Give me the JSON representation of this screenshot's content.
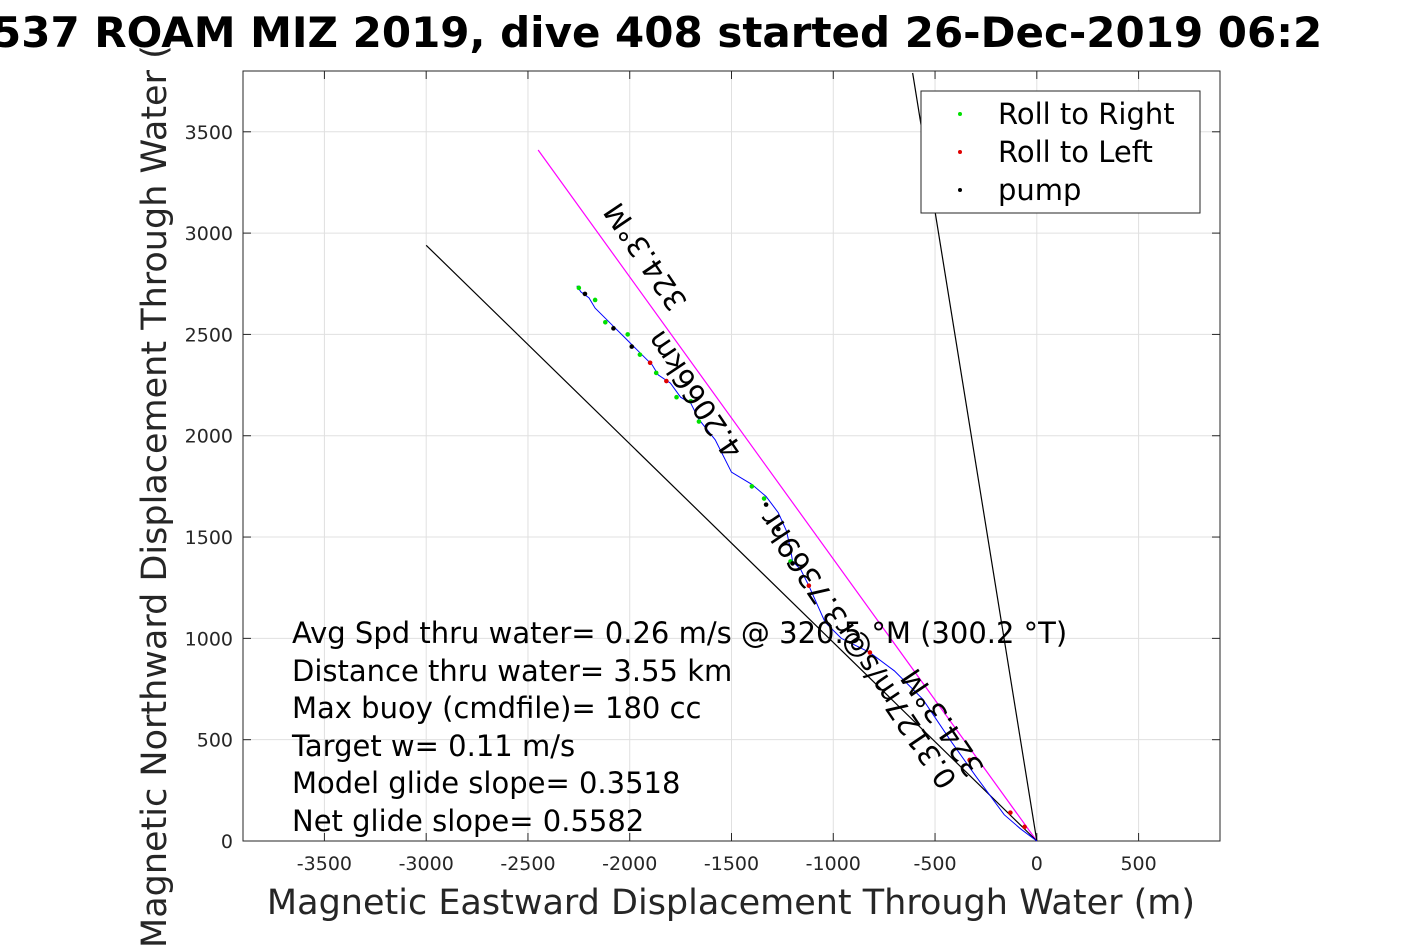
{
  "chart_data": {
    "type": "scatter",
    "title": "537 ROAM MIZ 2019, dive 408 started 26-Dec-2019 06:2",
    "xlabel": "Magnetic Eastward Displacement Through Water (m)",
    "ylabel": "Magnetic Northward Displacement Through Water (",
    "xlim": [
      -3900,
      900
    ],
    "ylim": [
      0,
      3800
    ],
    "xticks": [
      -3500,
      -3000,
      -2500,
      -2000,
      -1500,
      -1000,
      -500,
      0,
      500
    ],
    "yticks": [
      0,
      500,
      1000,
      1500,
      2000,
      2500,
      3000,
      3500
    ],
    "grid": true,
    "legend": {
      "placement": "top-right",
      "entries": [
        {
          "label": "Roll to Right",
          "color": "#00e000"
        },
        {
          "label": "Roll to Left",
          "color": "#e00000"
        },
        {
          "label": "pump",
          "color": "#000000"
        }
      ]
    },
    "heading_lines": [
      {
        "x": [
          0,
          -2450
        ],
        "y": [
          0,
          3410
        ],
        "color": "#ff00ff"
      },
      {
        "x": [
          0,
          -610
        ],
        "y": [
          0,
          3790
        ],
        "color": "#000000"
      },
      {
        "x": [
          0,
          -3000
        ],
        "y": [
          0,
          2940
        ],
        "color": "#000000"
      }
    ],
    "track": {
      "color": "#0000ff",
      "x": [
        0,
        -80,
        -160,
        -300,
        -420,
        -560,
        -700,
        -820,
        -960,
        -1040,
        -1120,
        -1160,
        -1200,
        -1210,
        -1230,
        -1270,
        -1330,
        -1400,
        -1500,
        -1580,
        -1660,
        -1700,
        -1750,
        -1800,
        -1860,
        -1890,
        -1940,
        -1990,
        -2030,
        -2080,
        -2110,
        -2170,
        -2200,
        -2240,
        -2260
      ],
      "y": [
        0,
        60,
        130,
        320,
        490,
        700,
        840,
        930,
        1000,
        1080,
        1260,
        1340,
        1380,
        1440,
        1530,
        1620,
        1700,
        1760,
        1820,
        1980,
        2080,
        2160,
        2190,
        2260,
        2300,
        2350,
        2400,
        2450,
        2490,
        2540,
        2570,
        2630,
        2680,
        2710,
        2740
      ]
    },
    "roll_right": {
      "x": [
        -1210,
        -1340,
        -1400,
        -1660,
        -1700,
        -1770,
        -1870,
        -1950,
        -2010,
        -2120,
        -2170,
        -2250
      ],
      "y": [
        1380,
        1690,
        1750,
        2070,
        2170,
        2190,
        2310,
        2400,
        2500,
        2560,
        2670,
        2730
      ]
    },
    "roll_left": {
      "x": [
        -60,
        -130,
        -330,
        -820,
        -1120,
        -1820,
        -1900
      ],
      "y": [
        70,
        140,
        400,
        930,
        1260,
        2270,
        2360
      ]
    },
    "pump": {
      "x": [
        -1200,
        -1270,
        -1330,
        -1990,
        -2080,
        -2220
      ],
      "y": [
        1370,
        1540,
        1660,
        2440,
        2530,
        2700
      ]
    },
    "annotations": [
      {
        "text": "324.3°M"
      },
      {
        "text": "4.2066km"
      },
      {
        "text": "0.3127m/s@r3.7369hr"
      },
      {
        "text": "324.3°M"
      }
    ],
    "info_lines": [
      "Avg Spd thru water=  0.26 m/s @ 320.5 °M (300.2 °T)",
      "Distance thru water=  3.55 km",
      "Max buoy (cmdfile)= 180 cc",
      "Target w= 0.11 m/s",
      "Model glide slope= 0.3518",
      "Net glide slope= 0.5582"
    ]
  }
}
